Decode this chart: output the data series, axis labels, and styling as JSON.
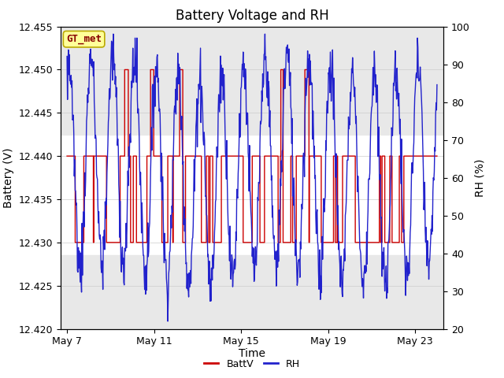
{
  "title": "Battery Voltage and RH",
  "xlabel": "Time",
  "ylabel_left": "Battery (V)",
  "ylabel_right": "RH (%)",
  "ylim_left": [
    12.42,
    12.455
  ],
  "ylim_right": [
    20,
    100
  ],
  "yticks_left": [
    12.42,
    12.425,
    12.43,
    12.435,
    12.44,
    12.445,
    12.45,
    12.455
  ],
  "yticks_right": [
    20,
    30,
    40,
    50,
    60,
    70,
    80,
    90,
    100
  ],
  "xtick_labels": [
    "May 7",
    "May 11",
    "May 15",
    "May 19",
    "May 23"
  ],
  "xtick_positions": [
    0,
    4,
    8,
    12,
    16
  ],
  "xlim": [
    -0.3,
    17.3
  ],
  "watermark_text": "GT_met",
  "legend_labels": [
    "BattV",
    "RH"
  ],
  "battv_color": "#cc0000",
  "rh_color": "#2222cc",
  "background_color": "#ffffff",
  "plot_bg_color": "#ffffff",
  "upper_band_y0": 12.4425,
  "upper_band_y1": 12.4555,
  "lower_band_y0": 12.42,
  "lower_band_y1": 12.4285,
  "band_color": "#e8e8e8",
  "title_fontsize": 12,
  "axis_label_fontsize": 10,
  "tick_fontsize": 9,
  "watermark_bg": "#ffff99",
  "watermark_border": "#bbaa00",
  "watermark_text_color": "#880000",
  "watermark_fontsize": 9
}
